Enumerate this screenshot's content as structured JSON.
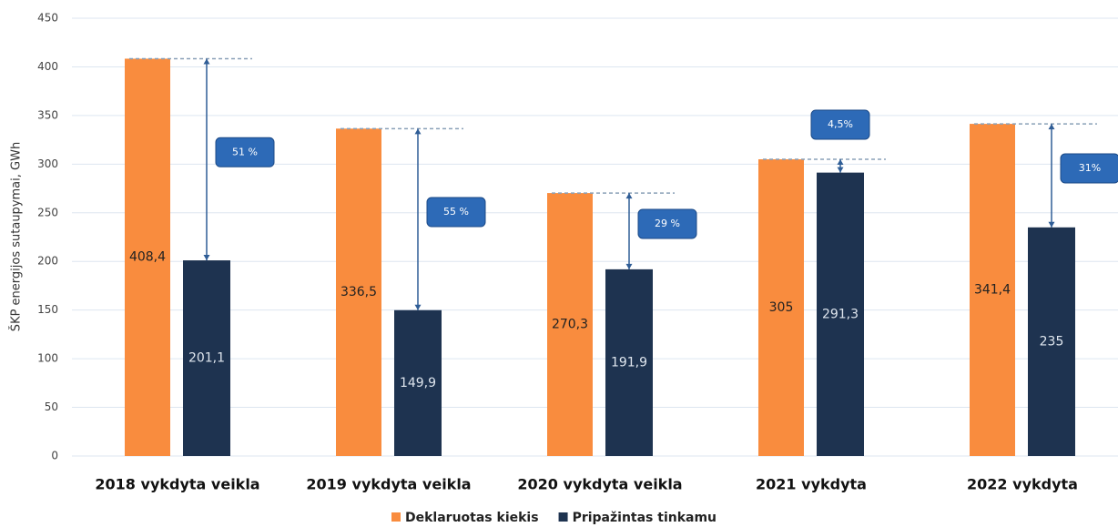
{
  "chart_data": {
    "type": "bar",
    "y_label": "ŠKP energijos sutaupymai, GWh",
    "categories": [
      "2018 vykdyta veikla",
      "2019 vykdyta veikla",
      "2020 vykdyta veikla",
      "2021 vykdyta",
      "2022 vykdyta"
    ],
    "series": [
      {
        "name": "Deklaruotas kiekis",
        "color": "#f98c3e",
        "values": [
          408.4,
          336.5,
          270.3,
          305,
          341.4
        ],
        "value_labels": [
          "408,4",
          "336,5",
          "270,3",
          "305",
          "341,4"
        ]
      },
      {
        "name": "Pripažintas tinkamu",
        "color": "#1e3350",
        "values": [
          201.1,
          149.9,
          191.9,
          291.3,
          235
        ],
        "value_labels": [
          "201,1",
          "149,9",
          "191,9",
          "291,3",
          "235"
        ]
      }
    ],
    "annotations": [
      "51 %",
      "55 %",
      "29 %",
      "4,5%",
      "31%"
    ],
    "ylim": [
      0,
      450
    ],
    "yticks": [
      0,
      50,
      100,
      150,
      200,
      250,
      300,
      350,
      400,
      450
    ],
    "grid": true
  }
}
